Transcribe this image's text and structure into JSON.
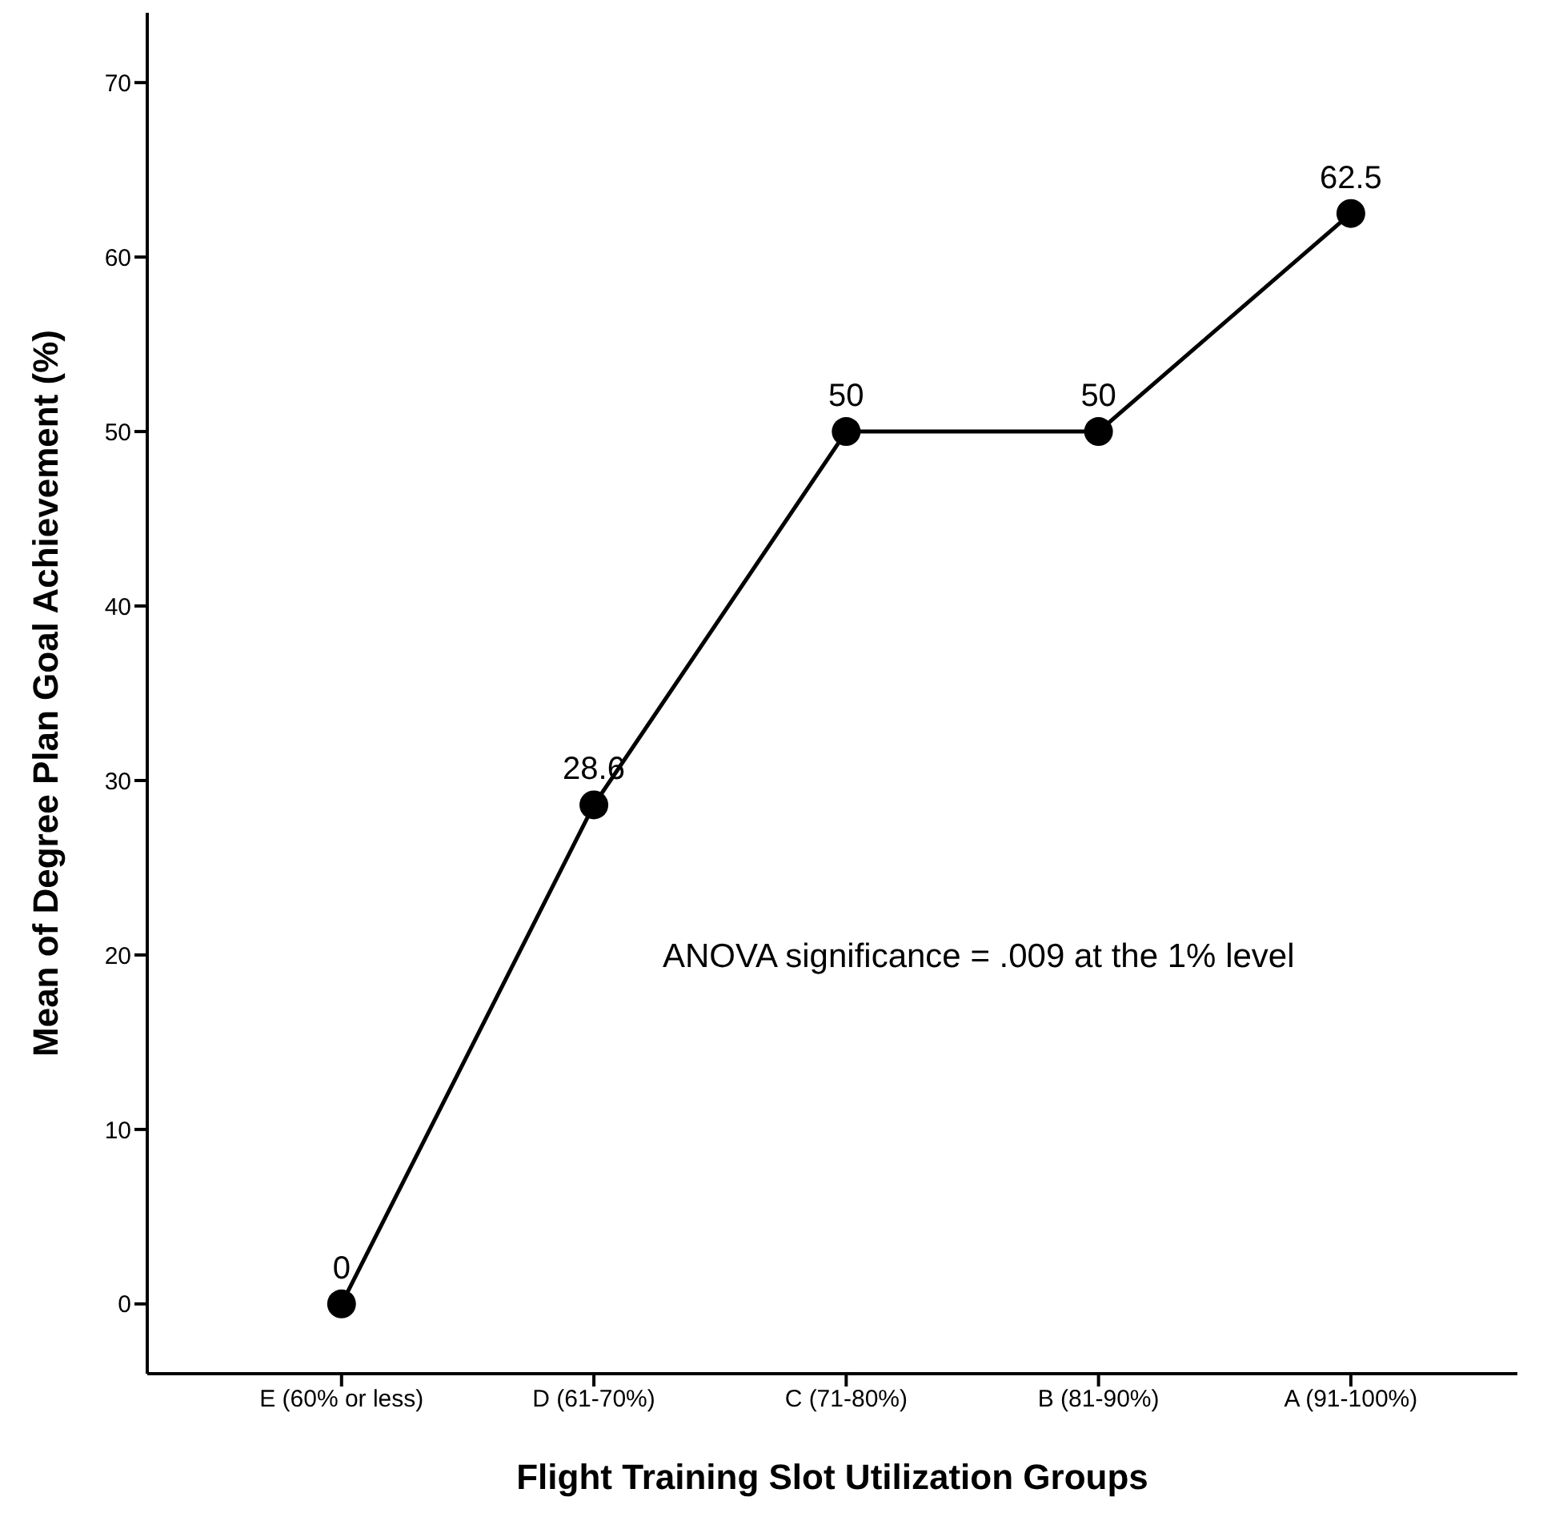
{
  "chart_data": {
    "type": "line",
    "xlabel": "Flight Training Slot Utilization Groups",
    "ylabel": "Mean of Degree Plan Goal Achievement (%)",
    "categories": [
      "E (60% or less)",
      "D (61-70%)",
      "C (71-80%)",
      "B (81-90%)",
      "A (91-100%)"
    ],
    "series": [
      {
        "color": "#000000",
        "values": [
          0,
          28.6,
          50,
          50,
          62.5
        ]
      }
    ],
    "ylim": [
      -4,
      74
    ],
    "yticks": [
      0,
      10,
      20,
      30,
      40,
      50,
      60,
      70
    ],
    "data_labels": true,
    "marker": "circle",
    "line_style": "solid",
    "grid": false,
    "legend": false,
    "annotations": [
      "ANOVA significance = .009 at the 1% level"
    ]
  }
}
